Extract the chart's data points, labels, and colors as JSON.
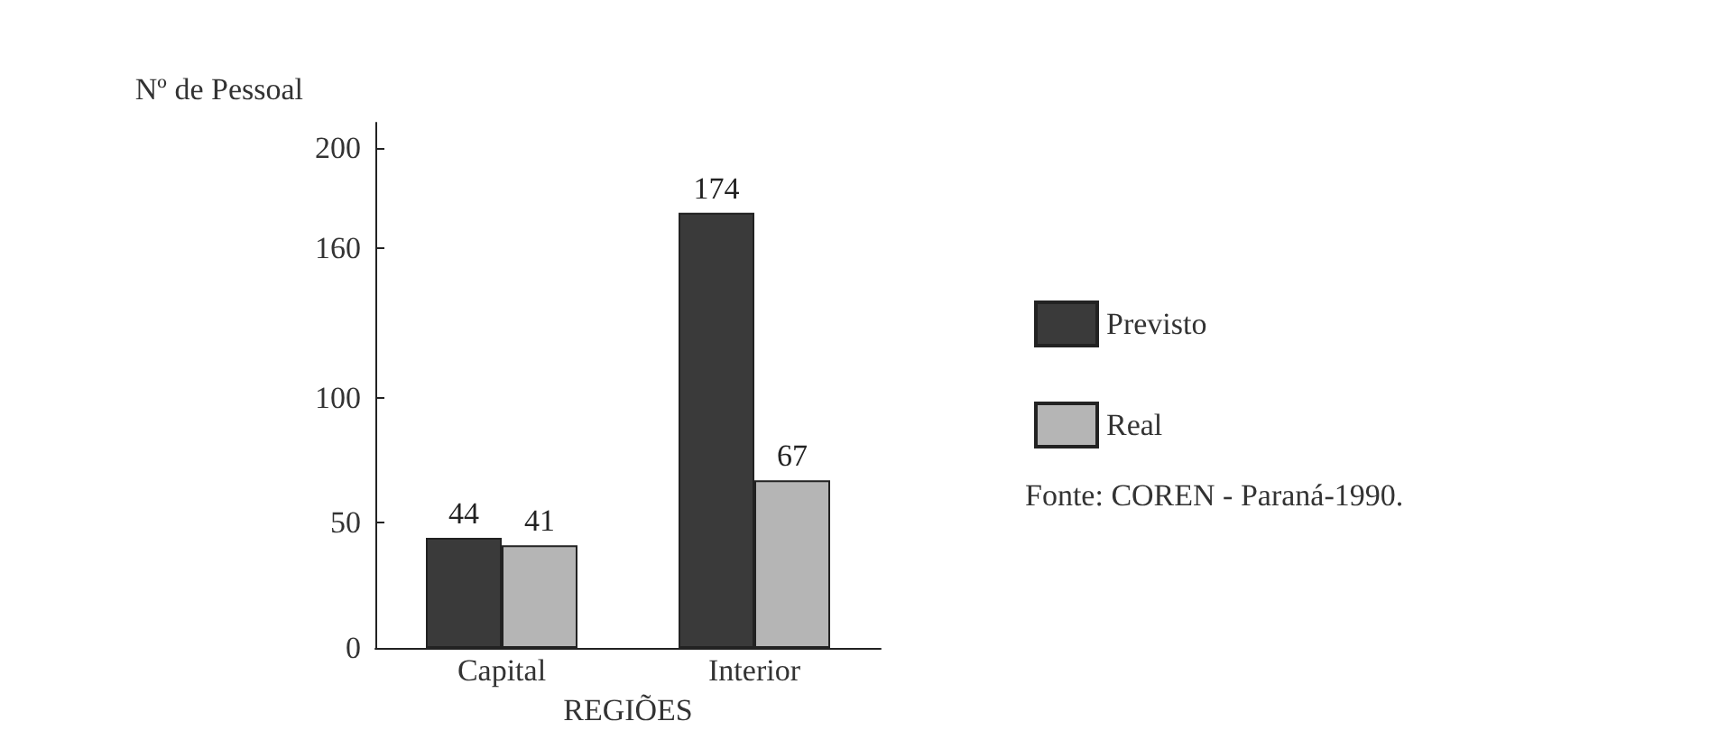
{
  "chart_data": {
    "type": "bar",
    "xlabel": "REGIÕES",
    "ylabel": "Nº de Pessoal",
    "categories": [
      "Capital",
      "Interior"
    ],
    "series": [
      {
        "name": "Previsto",
        "color": "#3a3a3a",
        "values": [
          44,
          174
        ]
      },
      {
        "name": "Real",
        "color": "#b5b5b5",
        "values": [
          41,
          67
        ]
      }
    ],
    "ylim": [
      0,
      210
    ],
    "yticks": [
      0,
      50,
      100,
      160,
      200
    ],
    "grid": false,
    "legend": "right",
    "data_labels": true,
    "annotations": [
      "Fonte: COREN - Paraná-1990."
    ]
  }
}
